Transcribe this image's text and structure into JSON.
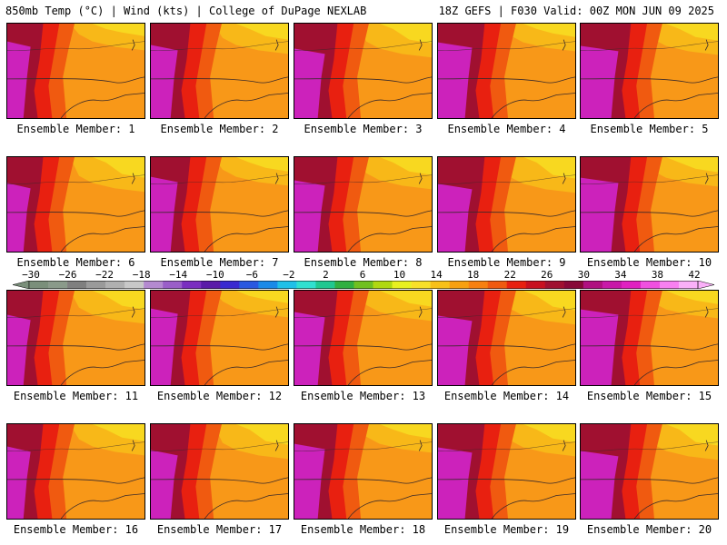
{
  "header": {
    "left_title": "850mb Temp (°C) | Wind (kts) | College of DuPage NEXLAB",
    "right_title": "18Z GEFS | F030 Valid: 00Z MON JUN 09 2025"
  },
  "panels": [
    {
      "label": "Ensemble Member: 1"
    },
    {
      "label": "Ensemble Member: 2"
    },
    {
      "label": "Ensemble Member: 3"
    },
    {
      "label": "Ensemble Member: 4"
    },
    {
      "label": "Ensemble Member: 5"
    },
    {
      "label": "Ensemble Member: 6"
    },
    {
      "label": "Ensemble Member: 7"
    },
    {
      "label": "Ensemble Member: 8"
    },
    {
      "label": "Ensemble Member: 9"
    },
    {
      "label": "Ensemble Member: 10"
    },
    {
      "label": "Ensemble Member: 11"
    },
    {
      "label": "Ensemble Member: 12"
    },
    {
      "label": "Ensemble Member: 13"
    },
    {
      "label": "Ensemble Member: 14"
    },
    {
      "label": "Ensemble Member: 15"
    },
    {
      "label": "Ensemble Member: 16"
    },
    {
      "label": "Ensemble Member: 17"
    },
    {
      "label": "Ensemble Member: 18"
    },
    {
      "label": "Ensemble Member: 19"
    },
    {
      "label": "Ensemble Member: 20"
    }
  ],
  "colorbar": {
    "tick_labels": [
      "−30",
      "−26",
      "−22",
      "−18",
      "−14",
      "−10",
      "−6",
      "−2",
      "2",
      "6",
      "10",
      "14",
      "18",
      "22",
      "26",
      "30",
      "34",
      "38",
      "42"
    ],
    "colors": [
      "#7a8f7a",
      "#8a9a8a",
      "#7f7f7f",
      "#9a9a9a",
      "#b0b0b0",
      "#c8c8c8",
      "#b48ad0",
      "#9a5ec8",
      "#7a2ec0",
      "#5a1aa8",
      "#3a2ad0",
      "#2a58e0",
      "#1a8ae8",
      "#20c0e8",
      "#30e0d0",
      "#20c890",
      "#30b040",
      "#70c020",
      "#b0d810",
      "#e8f020",
      "#f8e028",
      "#f8c018",
      "#f8a010",
      "#f88010",
      "#f05a10",
      "#e82010",
      "#c81020",
      "#a01030",
      "#880838",
      "#b01080",
      "#c818a8",
      "#e020c0",
      "#f050e0",
      "#f880f0",
      "#fab0f8"
    ]
  },
  "map_colors": {
    "hot_magenta": "#cc22bb",
    "deep_red": "#a01030",
    "red": "#e82010",
    "orange_red": "#f05a10",
    "orange": "#f89818",
    "light_orange": "#f8b818",
    "yellow": "#f8d820",
    "boundary": "#3a2a2a"
  }
}
